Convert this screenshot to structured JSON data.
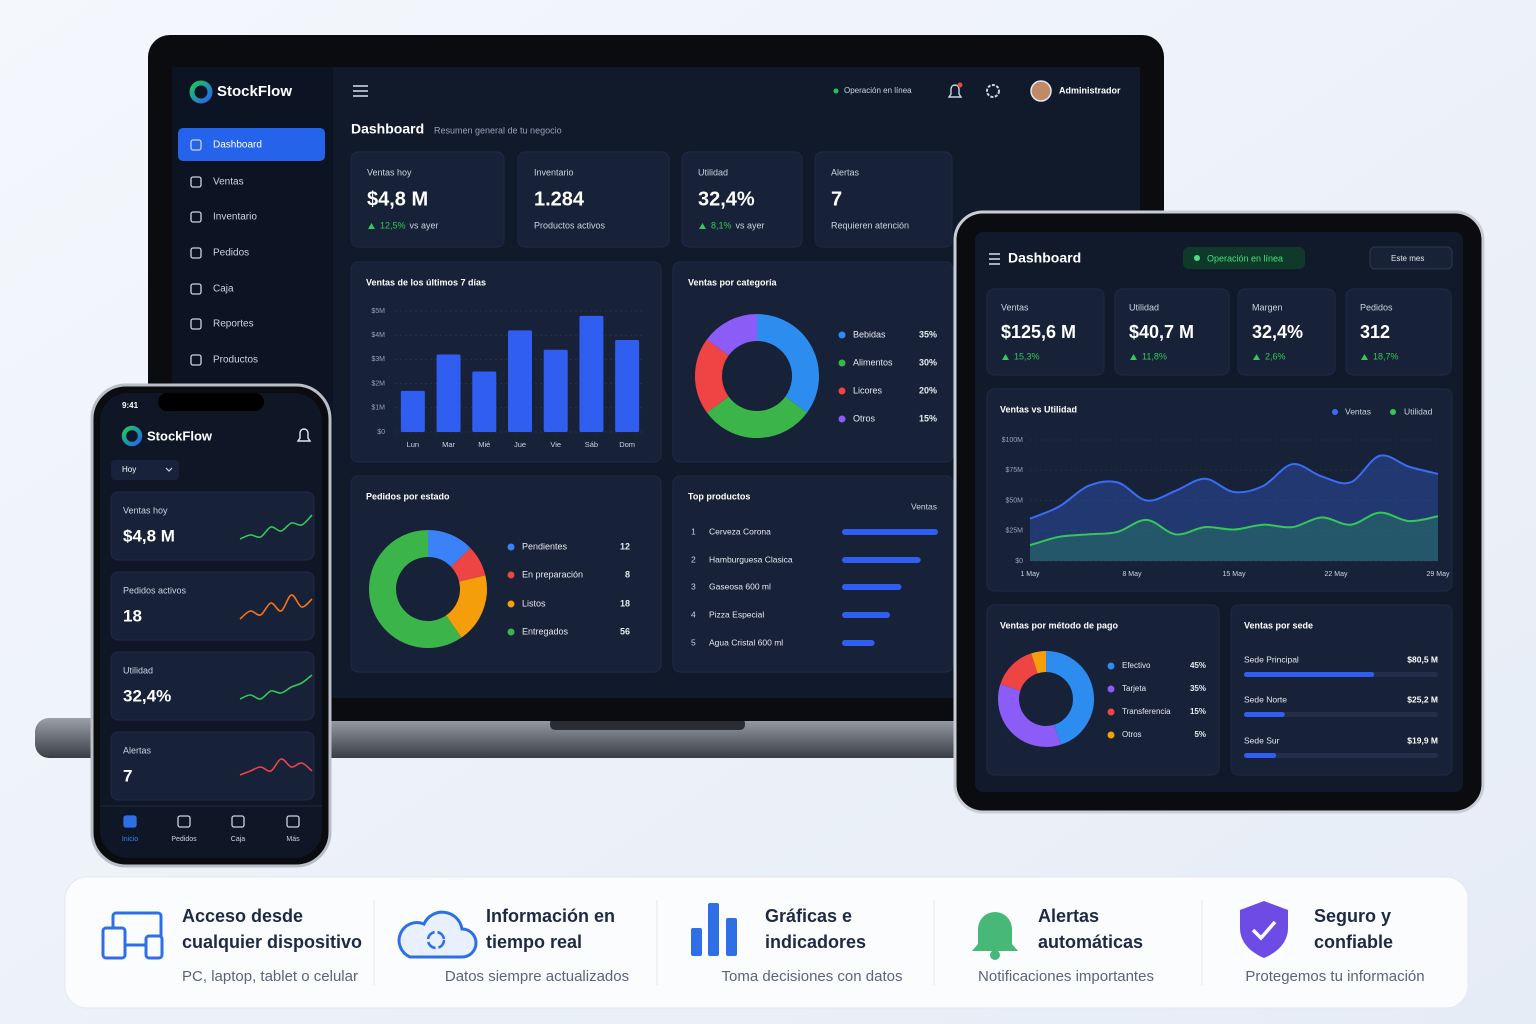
{
  "brand": "StockFlow",
  "laptop": {
    "nav": [
      "Dashboard",
      "Ventas",
      "Inventario",
      "Pedidos",
      "Caja",
      "Reportes",
      "Productos"
    ],
    "status": "Operación en línea",
    "user": "Administrador",
    "title": "Dashboard",
    "subtitle": "Resumen general de tu negocio",
    "kpis": [
      {
        "label": "Ventas hoy",
        "value": "$4,8 M",
        "delta": "12,5%",
        "note": "vs ayer"
      },
      {
        "label": "Inventario",
        "value": "1.284",
        "note": "Productos activos"
      },
      {
        "label": "Utilidad",
        "value": "32,4%",
        "delta": "8,1%",
        "note": "vs ayer"
      },
      {
        "label": "Alertas",
        "value": "7",
        "note": "Requieren atención"
      }
    ],
    "sales_chart": {
      "type": "bar",
      "title": "Ventas de los últimos 7 días",
      "categories": [
        "Lun",
        "Mar",
        "Mié",
        "Jue",
        "Vie",
        "Sáb",
        "Dom"
      ],
      "values": [
        1.7,
        3.2,
        2.5,
        4.2,
        3.4,
        4.8,
        3.8
      ],
      "color": "#2f5ef0",
      "ylim": [
        0,
        5
      ],
      "yticks": [
        {
          "value": 0,
          "label": "$0"
        },
        {
          "value": 1,
          "label": "$1M"
        },
        {
          "value": 2,
          "label": "$2M"
        },
        {
          "value": 3,
          "label": "$3M"
        },
        {
          "value": 4,
          "label": "$4M"
        },
        {
          "value": 5,
          "label": "$5M"
        }
      ],
      "grid": true
    },
    "category_chart": {
      "type": "donut",
      "title": "Ventas por categoría",
      "categories": [
        "Bebidas",
        "Alimentos",
        "Licores",
        "Otros"
      ],
      "values": [
        35,
        30,
        20,
        15
      ],
      "value_labels": [
        "35%",
        "30%",
        "20%",
        "15%"
      ],
      "colors": [
        "#2d8cf0",
        "#3bb54a",
        "#ef4444",
        "#8b5cf6"
      ]
    },
    "orders_chart": {
      "type": "donut",
      "title": "Pedidos por estado",
      "categories": [
        "Pendientes",
        "En preparación",
        "Listos",
        "Entregados"
      ],
      "values": [
        12,
        8,
        18,
        56
      ],
      "colors": [
        "#3b82f6",
        "#ef4444",
        "#f59e0b",
        "#3bb54a"
      ]
    },
    "top_products": {
      "type": "hbar",
      "title": "Top productos",
      "value_header": "Ventas",
      "ranks": [
        1,
        2,
        3,
        4,
        5
      ],
      "categories": [
        "Cerveza Corona",
        "Hamburguesa Clasica",
        "Gaseosa 600 ml",
        "Pizza Especial",
        "Agua Cristal 600 ml"
      ],
      "values": [
        100,
        82,
        62,
        50,
        34
      ],
      "xlim": [
        0,
        100
      ],
      "color": "#2f5ef0"
    }
  },
  "tablet": {
    "title": "Dashboard",
    "status": "Operación en línea",
    "period": "Este mes",
    "kpis": [
      {
        "label": "Ventas",
        "value": "$125,6 M",
        "delta": "15,3%"
      },
      {
        "label": "Utilidad",
        "value": "$40,7 M",
        "delta": "11,8%"
      },
      {
        "label": "Margen",
        "value": "32,4%",
        "delta": "2,6%"
      },
      {
        "label": "Pedidos",
        "value": "312",
        "delta": "18,7%"
      }
    ],
    "trend_chart": {
      "type": "line",
      "title": "Ventas vs Utilidad",
      "x": [
        1,
        3,
        5,
        7,
        9,
        11,
        13,
        15,
        17,
        19,
        21,
        23,
        25,
        27,
        29
      ],
      "xlim": [
        1,
        29
      ],
      "xticks": [
        {
          "value": 1,
          "label": "1 May"
        },
        {
          "value": 8,
          "label": "8 May"
        },
        {
          "value": 15,
          "label": "15 May"
        },
        {
          "value": 22,
          "label": "22 May"
        },
        {
          "value": 29,
          "label": "29 May"
        }
      ],
      "ylim": [
        0,
        100
      ],
      "yticks": [
        {
          "value": 0,
          "label": "$0"
        },
        {
          "value": 25,
          "label": "$25M"
        },
        {
          "value": 50,
          "label": "$50M"
        },
        {
          "value": 75,
          "label": "$75M"
        },
        {
          "value": 100,
          "label": "$100M"
        }
      ],
      "series": [
        {
          "name": "Ventas",
          "color": "#3b6cf6",
          "values": [
            35,
            45,
            62,
            65,
            50,
            58,
            68,
            57,
            62,
            80,
            70,
            65,
            87,
            78,
            72
          ]
        },
        {
          "name": "Utilidad",
          "color": "#34c759",
          "values": [
            13,
            20,
            22,
            24,
            34,
            22,
            28,
            26,
            30,
            28,
            36,
            30,
            40,
            33,
            37
          ]
        }
      ]
    },
    "payment_chart": {
      "type": "donut",
      "title": "Ventas por método de pago",
      "categories": [
        "Efectivo",
        "Tarjeta",
        "Transferencia",
        "Otros"
      ],
      "values": [
        45,
        35,
        15,
        5
      ],
      "value_labels": [
        "45%",
        "35%",
        "15%",
        "5%"
      ],
      "colors": [
        "#2d8cf0",
        "#8b5cf6",
        "#ef4444",
        "#f59e0b"
      ]
    },
    "branch_chart": {
      "type": "hbar",
      "title": "Ventas por sede",
      "categories": [
        "Sede Principal",
        "Sede Norte",
        "Sede Sur"
      ],
      "values": [
        80.5,
        25.2,
        19.9
      ],
      "value_labels": [
        "$80,5 M",
        "$25,2 M",
        "$19,9 M"
      ],
      "xlim": [
        0,
        120
      ],
      "color": "#2f5ef0"
    }
  },
  "phone": {
    "time": "9:41",
    "period": "Hoy",
    "cards": [
      {
        "label": "Ventas hoy",
        "value": "$4,8 M",
        "color": "#34c759",
        "ylim": [
          0,
          10
        ],
        "trend": [
          2,
          3,
          2.5,
          5,
          4,
          6,
          5.5,
          8
        ]
      },
      {
        "label": "Pedidos activos",
        "value": "18",
        "color": "#f97316",
        "ylim": [
          0,
          10
        ],
        "trend": [
          2,
          4,
          3,
          6,
          4,
          8,
          5,
          7
        ]
      },
      {
        "label": "Utilidad",
        "value": "32,4%",
        "color": "#34c759",
        "ylim": [
          0,
          10
        ],
        "trend": [
          2,
          3,
          2,
          4,
          3.5,
          5,
          6,
          8
        ]
      },
      {
        "label": "Alertas",
        "value": "7",
        "color": "#ef4444",
        "ylim": [
          0,
          10
        ],
        "trend": [
          3,
          4,
          5,
          4,
          7,
          5,
          6,
          4
        ]
      }
    ],
    "nav": [
      "Inicio",
      "Pedidos",
      "Caja",
      "Más"
    ]
  },
  "features": [
    {
      "title": [
        "Acceso desde",
        "cualquier dispositivo"
      ],
      "text": "PC, laptop, tablet o celular"
    },
    {
      "title": [
        "Información en",
        "tiempo real"
      ],
      "text": "Datos siempre actualizados"
    },
    {
      "title": [
        "Gráficas e",
        "indicadores"
      ],
      "text": "Toma decisiones con datos"
    },
    {
      "title": [
        "Alertas",
        "automáticas"
      ],
      "text": "Notificaciones importantes"
    },
    {
      "title": [
        "Seguro y",
        "confiable"
      ],
      "text": "Protegemos tu información"
    }
  ]
}
